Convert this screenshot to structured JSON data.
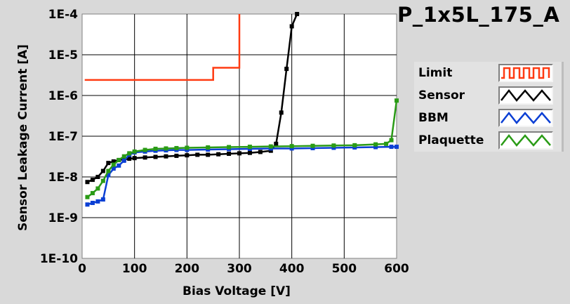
{
  "chart_title": "P_1x5L_175_A",
  "legend": [
    {
      "label": "Limit",
      "color": "#ff3b12"
    },
    {
      "label": "Sensor",
      "color": "#000000"
    },
    {
      "label": "BBM",
      "color": "#0b3fd4"
    },
    {
      "label": "Plaquette",
      "color": "#2a9b16"
    }
  ],
  "chart_data": {
    "type": "line",
    "title": "P_1x5L_175_A",
    "xlabel": "Bias Voltage [V]",
    "ylabel": "Sensor Leakage Current [A]",
    "xlim": [
      0,
      600
    ],
    "ylim": [
      1e-10,
      0.0001
    ],
    "yscale": "log",
    "grid": true,
    "legend_position": "right",
    "x_ticks": [
      0,
      100,
      200,
      300,
      400,
      500,
      600
    ],
    "x_tick_labels": [
      "0",
      "100",
      "200",
      "300",
      "400",
      "500",
      "600"
    ],
    "y_ticks": [
      1e-10,
      1e-09,
      1e-08,
      1e-07,
      1e-06,
      1e-05,
      0.0001
    ],
    "y_tick_labels": [
      "1E-10",
      "1E-9",
      "1E-8",
      "1E-7",
      "1E-6",
      "1E-5",
      "1E-4"
    ],
    "series": [
      {
        "name": "Limit",
        "color": "#ff3b12",
        "marker": false,
        "x": [
          5,
          250,
          250,
          260,
          260,
          300,
          300,
          300
        ],
        "y": [
          2.4e-06,
          2.4e-06,
          4.8e-06,
          4.8e-06,
          4.8e-06,
          4.8e-06,
          4.8e-06,
          0.0001
        ]
      },
      {
        "name": "Sensor",
        "color": "#000000",
        "marker": true,
        "x": [
          10,
          20,
          30,
          40,
          50,
          60,
          70,
          80,
          90,
          100,
          120,
          140,
          160,
          180,
          200,
          220,
          240,
          260,
          280,
          300,
          320,
          340,
          360,
          370,
          380,
          390,
          400,
          410
        ],
        "y": [
          7.5e-09,
          8.5e-09,
          1e-08,
          1.4e-08,
          2.2e-08,
          2.4e-08,
          2.6e-08,
          2.7e-08,
          2.8e-08,
          2.9e-08,
          3e-08,
          3.1e-08,
          3.2e-08,
          3.3e-08,
          3.4e-08,
          3.5e-08,
          3.5e-08,
          3.6e-08,
          3.7e-08,
          3.8e-08,
          3.9e-08,
          4.1e-08,
          4.4e-08,
          6.5e-08,
          3.8e-07,
          4.5e-06,
          5e-05,
          0.0001
        ]
      },
      {
        "name": "BBM",
        "color": "#0b3fd4",
        "marker": true,
        "x": [
          10,
          20,
          30,
          40,
          50,
          60,
          70,
          80,
          90,
          100,
          120,
          140,
          160,
          180,
          200,
          240,
          280,
          320,
          360,
          400,
          440,
          480,
          520,
          560,
          590,
          600
        ],
        "y": [
          2.1e-09,
          2.3e-09,
          2.5e-09,
          2.8e-09,
          1.1e-08,
          1.6e-08,
          1.9e-08,
          2.5e-08,
          3.5e-08,
          4e-08,
          4.2e-08,
          4.4e-08,
          4.5e-08,
          4.6e-08,
          4.6e-08,
          4.7e-08,
          4.8e-08,
          4.9e-08,
          5e-08,
          5e-08,
          5.1e-08,
          5.2e-08,
          5.3e-08,
          5.4e-08,
          5.5e-08,
          5.5e-08
        ]
      },
      {
        "name": "Plaquette",
        "color": "#2a9b16",
        "marker": true,
        "x": [
          10,
          20,
          30,
          40,
          50,
          60,
          70,
          80,
          90,
          100,
          120,
          140,
          160,
          180,
          200,
          240,
          280,
          320,
          360,
          400,
          440,
          480,
          520,
          560,
          580,
          590,
          600
        ],
        "y": [
          3.2e-09,
          4e-09,
          5.2e-09,
          8e-09,
          1.4e-08,
          2e-08,
          2.6e-08,
          3.2e-08,
          3.8e-08,
          4.2e-08,
          4.6e-08,
          4.9e-08,
          5e-08,
          5.1e-08,
          5.2e-08,
          5.3e-08,
          5.4e-08,
          5.5e-08,
          5.6e-08,
          5.7e-08,
          5.8e-08,
          5.9e-08,
          6e-08,
          6.3e-08,
          6.5e-08,
          8e-08,
          7.5e-07
        ]
      }
    ]
  }
}
